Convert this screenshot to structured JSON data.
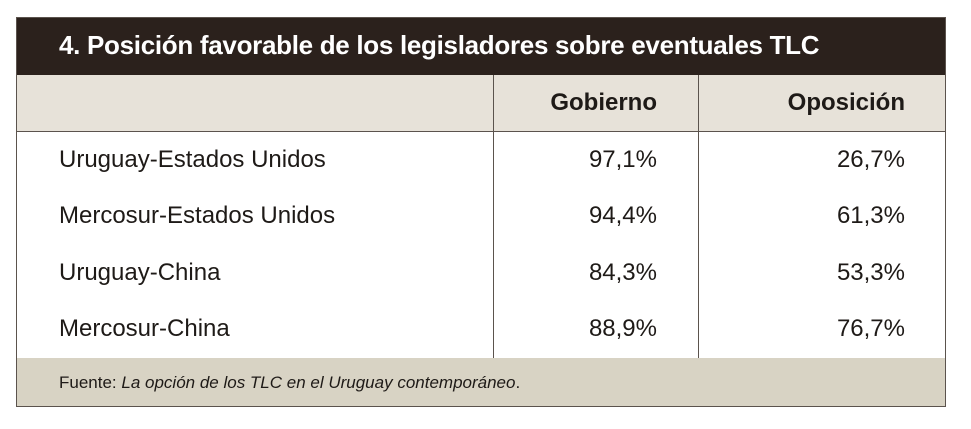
{
  "title": "4. Posición favorable de los legisladores sobre eventuales TLC",
  "columns": [
    "",
    "Gobierno",
    "Oposición"
  ],
  "rows": [
    {
      "label": "Uruguay-Estados Unidos",
      "gobierno": "97,1%",
      "oposicion": "26,7%"
    },
    {
      "label": "Mercosur-Estados Unidos",
      "gobierno": "94,4%",
      "oposicion": "61,3%"
    },
    {
      "label": "Uruguay-China",
      "gobierno": "84,3%",
      "oposicion": "53,3%"
    },
    {
      "label": "Mercosur-China",
      "gobierno": "88,9%",
      "oposicion": "76,7%"
    }
  ],
  "footer": {
    "prefix": "Fuente: ",
    "source": "La opción de los TLC en el Uruguay contemporáneo",
    "suffix": "."
  },
  "colors": {
    "title_bg": "#2b211c",
    "header_bg": "#e7e2d9",
    "footer_bg": "#d8d3c4",
    "border": "#5b534d"
  }
}
